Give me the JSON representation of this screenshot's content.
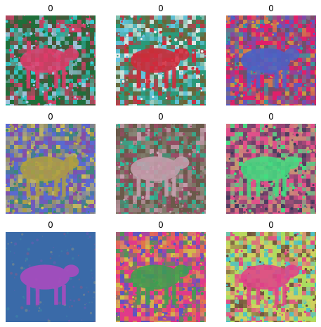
{
  "figure": {
    "panels": [
      {
        "label": "0",
        "scene": "noisy-cow-pasture",
        "palette": [
          "#1f6f3a",
          "#e23a6b",
          "#3ad0d8",
          "#5a4a3a",
          "#a9c8e8"
        ]
      },
      {
        "label": "0",
        "scene": "noisy-cow-swirl",
        "palette": [
          "#2a9a7a",
          "#d8263a",
          "#f0f0f0",
          "#6ac8e8",
          "#7a5a2a"
        ]
      },
      {
        "label": "0",
        "scene": "noisy-cow-dark-field",
        "palette": [
          "#e0206a",
          "#4a62c8",
          "#5a5a6a",
          "#2aa0a0",
          "#c8a040"
        ]
      },
      {
        "label": "0",
        "scene": "noisy-cow-blue-herd",
        "palette": [
          "#5a6ad0",
          "#b0a040",
          "#8a4aa0",
          "#3a8a6a",
          "#d0c050"
        ]
      },
      {
        "label": "0",
        "scene": "noisy-cow-standing",
        "palette": [
          "#6a5a4a",
          "#c8a0b0",
          "#2ac0a0",
          "#a04a6a",
          "#8a8a7a"
        ]
      },
      {
        "label": "0",
        "scene": "noisy-cow-sunset-field",
        "palette": [
          "#e0508a",
          "#40e080",
          "#6a4a6a",
          "#c0a070",
          "#3a3a5a"
        ]
      },
      {
        "label": "0",
        "scene": "noisy-cow-blue-backdrop",
        "palette": [
          "#3a6aa8",
          "#b04ac0",
          "#e0c060",
          "#40b0a0",
          "#e04a6a"
        ]
      },
      {
        "label": "0",
        "scene": "noisy-cow-sky-trees",
        "palette": [
          "#e03a8a",
          "#3aa050",
          "#d0d040",
          "#4a5ac8",
          "#e08040"
        ]
      },
      {
        "label": "0",
        "scene": "noisy-cow-closeup",
        "palette": [
          "#d0d060",
          "#e0408a",
          "#3ac0d0",
          "#6a4a3a",
          "#a0e060"
        ]
      }
    ]
  }
}
